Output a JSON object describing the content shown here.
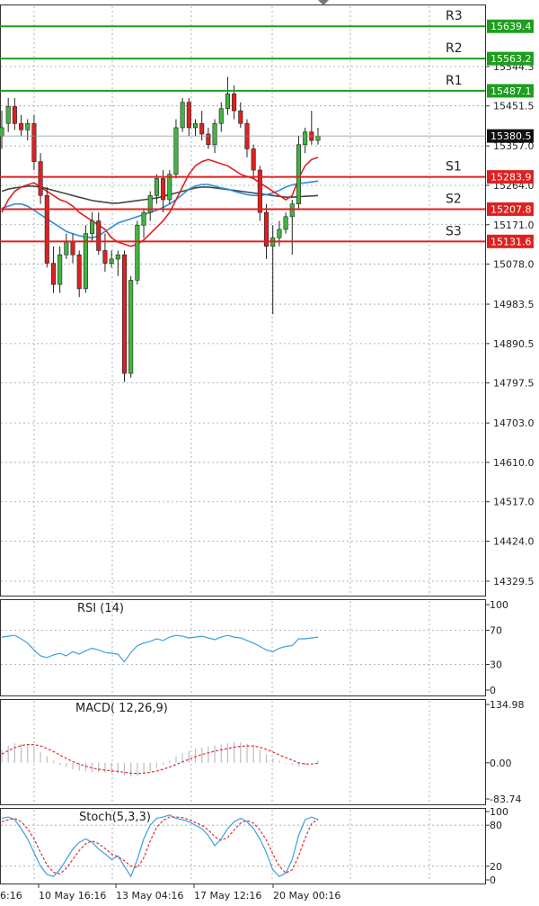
{
  "chart_data": [
    {
      "type": "candlestick",
      "panel": "price",
      "y_ticks": [
        "15544.3",
        "15451.5",
        "15357.0",
        "15264.0",
        "15171.0",
        "15078.0",
        "14983.5",
        "14890.5",
        "14797.5",
        "14703.0",
        "14610.0",
        "14517.0",
        "14424.0",
        "14329.5"
      ],
      "ylim": [
        14300,
        15700
      ],
      "grid": true,
      "current_price": "15380.5",
      "levels": [
        {
          "name": "R3",
          "value": 15639.4,
          "label": "15639.4",
          "color": "#1e9e1e"
        },
        {
          "name": "R2",
          "value": 15563.2,
          "label": "15563.2",
          "color": "#1e9e1e"
        },
        {
          "name": "R1",
          "value": 15487.1,
          "label": "15487.1",
          "color": "#1e9e1e"
        },
        {
          "name": "S1",
          "value": 15283.9,
          "label": "15283.9",
          "color": "#e02020"
        },
        {
          "name": "S2",
          "value": 15207.8,
          "label": "15207.8",
          "color": "#e02020"
        },
        {
          "name": "S3",
          "value": 15131.6,
          "label": "15131.6",
          "color": "#e02020"
        }
      ],
      "candles": [
        [
          15380,
          15440,
          15350,
          15400
        ],
        [
          15410,
          15470,
          15390,
          15450
        ],
        [
          15450,
          15470,
          15395,
          15410
        ],
        [
          15410,
          15430,
          15380,
          15395
        ],
        [
          15395,
          15420,
          15370,
          15410
        ],
        [
          15410,
          15430,
          15300,
          15320
        ],
        [
          15320,
          15340,
          15220,
          15240
        ],
        [
          15240,
          15260,
          15070,
          15080
        ],
        [
          15080,
          15120,
          15010,
          15030
        ],
        [
          15030,
          15120,
          15010,
          15100
        ],
        [
          15100,
          15150,
          15090,
          15130
        ],
        [
          15130,
          15150,
          15080,
          15100
        ],
        [
          15100,
          15110,
          15000,
          15020
        ],
        [
          15020,
          15170,
          15010,
          15150
        ],
        [
          15150,
          15200,
          15130,
          15180
        ],
        [
          15180,
          15200,
          15100,
          15110
        ],
        [
          15110,
          15150,
          15060,
          15080
        ],
        [
          15080,
          15110,
          15070,
          15090
        ],
        [
          15090,
          15110,
          15050,
          15100
        ],
        [
          15100,
          15110,
          14800,
          14820
        ],
        [
          14820,
          15050,
          14810,
          15040
        ],
        [
          15040,
          15180,
          15030,
          15170
        ],
        [
          15170,
          15210,
          15140,
          15200
        ],
        [
          15200,
          15250,
          15180,
          15240
        ],
        [
          15240,
          15290,
          15220,
          15280
        ],
        [
          15280,
          15300,
          15200,
          15230
        ],
        [
          15230,
          15300,
          15220,
          15290
        ],
        [
          15290,
          15420,
          15280,
          15400
        ],
        [
          15400,
          15470,
          15390,
          15460
        ],
        [
          15460,
          15470,
          15380,
          15400
        ],
        [
          15400,
          15420,
          15380,
          15410
        ],
        [
          15410,
          15440,
          15370,
          15385
        ],
        [
          15385,
          15400,
          15350,
          15360
        ],
        [
          15360,
          15420,
          15340,
          15410
        ],
        [
          15410,
          15460,
          15390,
          15445
        ],
        [
          15445,
          15520,
          15430,
          15480
        ],
        [
          15480,
          15500,
          15420,
          15440
        ],
        [
          15440,
          15460,
          15400,
          15410
        ],
        [
          15410,
          15420,
          15330,
          15350
        ],
        [
          15350,
          15360,
          15280,
          15300
        ],
        [
          15300,
          15310,
          15180,
          15200
        ],
        [
          15200,
          15220,
          15090,
          15120
        ],
        [
          15120,
          15170,
          14960,
          15140
        ],
        [
          15140,
          15180,
          15120,
          15160
        ],
        [
          15160,
          15200,
          15150,
          15190
        ],
        [
          15190,
          15230,
          15100,
          15220
        ],
        [
          15220,
          15380,
          15210,
          15360
        ],
        [
          15360,
          15400,
          15340,
          15390
        ],
        [
          15390,
          15440,
          15360,
          15370
        ],
        [
          15370,
          15400,
          15360,
          15380
        ]
      ],
      "ma_red": [
        15200,
        15230,
        15250,
        15260,
        15265,
        15270,
        15260,
        15250,
        15240,
        15230,
        15225,
        15215,
        15200,
        15190,
        15180,
        15170,
        15160,
        15140,
        15130,
        15125,
        15120,
        15125,
        15135,
        15150,
        15165,
        15180,
        15200,
        15230,
        15260,
        15290,
        15310,
        15320,
        15325,
        15320,
        15315,
        15310,
        15300,
        15290,
        15285,
        15280,
        15270,
        15260,
        15250,
        15240,
        15230,
        15240,
        15280,
        15310,
        15325,
        15330
      ],
      "ma_blue": [
        15210,
        15215,
        15220,
        15220,
        15215,
        15205,
        15195,
        15185,
        15175,
        15165,
        15155,
        15150,
        15145,
        15142,
        15140,
        15145,
        15155,
        15165,
        15175,
        15180,
        15185,
        15190,
        15195,
        15200,
        15205,
        15212,
        15220,
        15230,
        15242,
        15255,
        15262,
        15266,
        15266,
        15262,
        15258,
        15255,
        15250,
        15246,
        15242,
        15240,
        15240,
        15242,
        15246,
        15252,
        15260,
        15265,
        15268,
        15270,
        15272,
        15274
      ],
      "ma_dark": [
        15250,
        15255,
        15258,
        15260,
        15262,
        15262,
        15260,
        15256,
        15252,
        15248,
        15244,
        15240,
        15236,
        15232,
        15228,
        15226,
        15224,
        15222,
        15222,
        15224,
        15226,
        15228,
        15230,
        15232,
        15234,
        15238,
        15242,
        15246,
        15250,
        15254,
        15258,
        15260,
        15260,
        15258,
        15256,
        15254,
        15252,
        15250,
        15248,
        15246,
        15244,
        15242,
        15240,
        15238,
        15236,
        15236,
        15237,
        15238,
        15239,
        15240
      ]
    },
    {
      "type": "line",
      "panel": "rsi",
      "title": "RSI (14)",
      "y_ticks": [
        "100",
        "70",
        "30",
        "0"
      ],
      "ylim": [
        0,
        100
      ],
      "values": [
        62,
        63,
        64,
        60,
        55,
        47,
        40,
        38,
        41,
        43,
        40,
        45,
        42,
        46,
        49,
        47,
        44,
        43,
        42,
        33,
        44,
        52,
        55,
        57,
        60,
        58,
        62,
        64,
        63,
        61,
        62,
        63,
        61,
        59,
        62,
        64,
        62,
        61,
        58,
        55,
        51,
        47,
        45,
        49,
        51,
        52,
        60,
        60,
        61,
        62
      ]
    },
    {
      "type": "bar",
      "panel": "macd",
      "title": "MACD( 12,26,9)",
      "y_ticks": [
        "134.98",
        "0.00",
        "-83.74"
      ],
      "ylim": [
        -83.74,
        134.98
      ],
      "histogram": [
        30,
        40,
        45,
        44,
        40,
        35,
        25,
        15,
        5,
        -5,
        -10,
        -15,
        -18,
        -20,
        -22,
        -22,
        -23,
        -24,
        -25,
        -30,
        -32,
        -30,
        -25,
        -20,
        -12,
        -5,
        5,
        15,
        22,
        28,
        33,
        35,
        38,
        40,
        42,
        45,
        48,
        47,
        44,
        40,
        30,
        20,
        10,
        5,
        -2,
        -5,
        -8,
        -5,
        0,
        5
      ],
      "signal": [
        20,
        28,
        35,
        40,
        42,
        42,
        39,
        33,
        26,
        18,
        10,
        3,
        -3,
        -8,
        -12,
        -15,
        -17,
        -19,
        -20,
        -22,
        -24,
        -25,
        -24,
        -22,
        -19,
        -15,
        -10,
        -4,
        2,
        8,
        14,
        19,
        23,
        27,
        30,
        33,
        36,
        38,
        39,
        39,
        36,
        31,
        25,
        18,
        12,
        6,
        0,
        -3,
        -3,
        -1
      ]
    },
    {
      "type": "line",
      "panel": "stoch",
      "title": "Stoch(5,3,3)",
      "y_ticks": [
        "100",
        "80",
        "20",
        "0"
      ],
      "ylim": [
        0,
        100
      ],
      "main": [
        90,
        92,
        88,
        75,
        60,
        40,
        20,
        8,
        5,
        15,
        30,
        45,
        55,
        60,
        55,
        45,
        38,
        30,
        35,
        20,
        5,
        30,
        60,
        80,
        90,
        92,
        95,
        90,
        88,
        85,
        80,
        75,
        65,
        50,
        60,
        75,
        85,
        90,
        85,
        75,
        60,
        40,
        15,
        5,
        10,
        30,
        65,
        88,
        92,
        88
      ],
      "signal": [
        85,
        88,
        90,
        85,
        75,
        60,
        40,
        22,
        11,
        9,
        17,
        30,
        43,
        53,
        57,
        53,
        46,
        38,
        34,
        28,
        20,
        18,
        32,
        57,
        77,
        87,
        92,
        92,
        91,
        88,
        84,
        80,
        73,
        63,
        58,
        62,
        73,
        83,
        87,
        83,
        73,
        58,
        38,
        20,
        10,
        15,
        35,
        61,
        82,
        89
      ]
    }
  ],
  "x_ticks": [
    "10 May 16:16",
    "13 May 04:16",
    "17 May 12:16",
    "20 May 00:16"
  ],
  "x_edge_label": "6:16"
}
